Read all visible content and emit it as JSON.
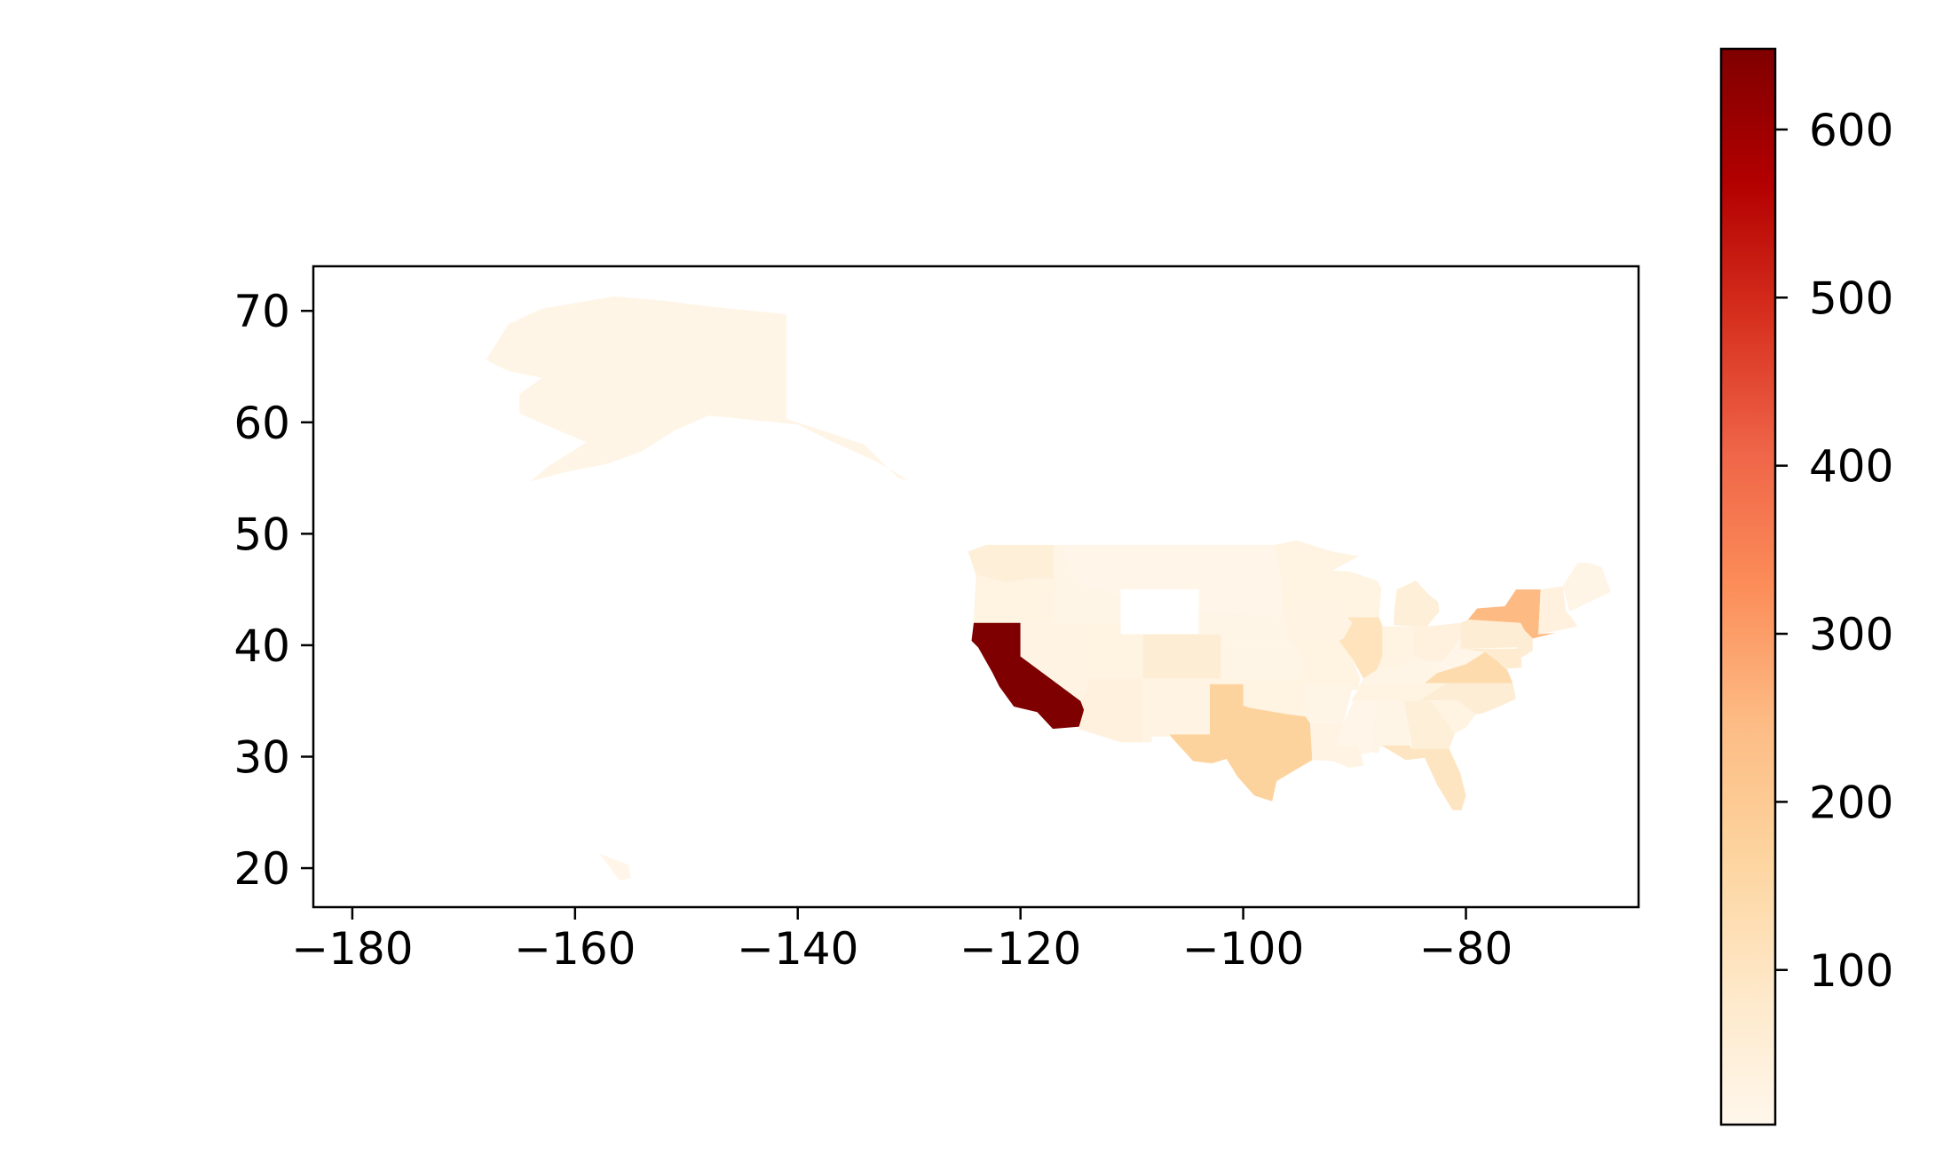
{
  "chart_data": {
    "type": "choropleth",
    "title": "",
    "xlabel": "",
    "ylabel": "",
    "xlim": [
      -183.5,
      -64.5
    ],
    "ylim": [
      16.5,
      74
    ],
    "xticks": [
      -180,
      -160,
      -140,
      -120,
      -100,
      -80
    ],
    "yticks": [
      20,
      30,
      40,
      50,
      60,
      70
    ],
    "xtick_labels": [
      "−180",
      "−160",
      "−140",
      "−120",
      "−100",
      "−80"
    ],
    "ytick_labels": [
      "20",
      "30",
      "40",
      "50",
      "60",
      "70"
    ],
    "grid": false,
    "colormap": "OrRd",
    "colorbar": {
      "range": [
        8,
        648
      ],
      "ticks": [
        100,
        200,
        300,
        400,
        500,
        600
      ],
      "tick_labels": [
        "100",
        "200",
        "300",
        "400",
        "500",
        "600"
      ],
      "placement": "right"
    },
    "regions": [
      {
        "name": "Alaska",
        "value": 20
      },
      {
        "name": "Hawaii",
        "value": 15
      },
      {
        "name": "Washington",
        "value": 50
      },
      {
        "name": "Oregon",
        "value": 30
      },
      {
        "name": "California",
        "value": 648
      },
      {
        "name": "Idaho",
        "value": 20
      },
      {
        "name": "Nevada",
        "value": 25
      },
      {
        "name": "Montana",
        "value": 15
      },
      {
        "name": "Wyoming",
        "value": 0
      },
      {
        "name": "Utah",
        "value": 30
      },
      {
        "name": "Colorado",
        "value": 60
      },
      {
        "name": "Arizona",
        "value": 40
      },
      {
        "name": "New Mexico",
        "value": 25
      },
      {
        "name": "North Dakota",
        "value": 15
      },
      {
        "name": "South Dakota",
        "value": 15
      },
      {
        "name": "Nebraska",
        "value": 20
      },
      {
        "name": "Kansas",
        "value": 20
      },
      {
        "name": "Oklahoma",
        "value": 30
      },
      {
        "name": "Texas",
        "value": 170
      },
      {
        "name": "Minnesota",
        "value": 30
      },
      {
        "name": "Iowa",
        "value": 25
      },
      {
        "name": "Missouri",
        "value": 30
      },
      {
        "name": "Arkansas",
        "value": 20
      },
      {
        "name": "Louisiana",
        "value": 25
      },
      {
        "name": "Wisconsin",
        "value": 30
      },
      {
        "name": "Illinois",
        "value": 110
      },
      {
        "name": "Michigan",
        "value": 50
      },
      {
        "name": "Indiana",
        "value": 30
      },
      {
        "name": "Ohio",
        "value": 40
      },
      {
        "name": "Kentucky",
        "value": 20
      },
      {
        "name": "Tennessee",
        "value": 30
      },
      {
        "name": "Mississippi",
        "value": 15
      },
      {
        "name": "Alabama",
        "value": 20
      },
      {
        "name": "Georgia",
        "value": 50
      },
      {
        "name": "Florida",
        "value": 100
      },
      {
        "name": "South Carolina",
        "value": 30
      },
      {
        "name": "North Carolina",
        "value": 60
      },
      {
        "name": "Virginia",
        "value": 140
      },
      {
        "name": "West Virginia",
        "value": 15
      },
      {
        "name": "Pennsylvania",
        "value": 60
      },
      {
        "name": "New York",
        "value": 250
      },
      {
        "name": "New Jersey",
        "value": 60
      },
      {
        "name": "Maryland",
        "value": 70
      },
      {
        "name": "New England",
        "value": 40
      },
      {
        "name": "Maine",
        "value": 20
      }
    ]
  }
}
